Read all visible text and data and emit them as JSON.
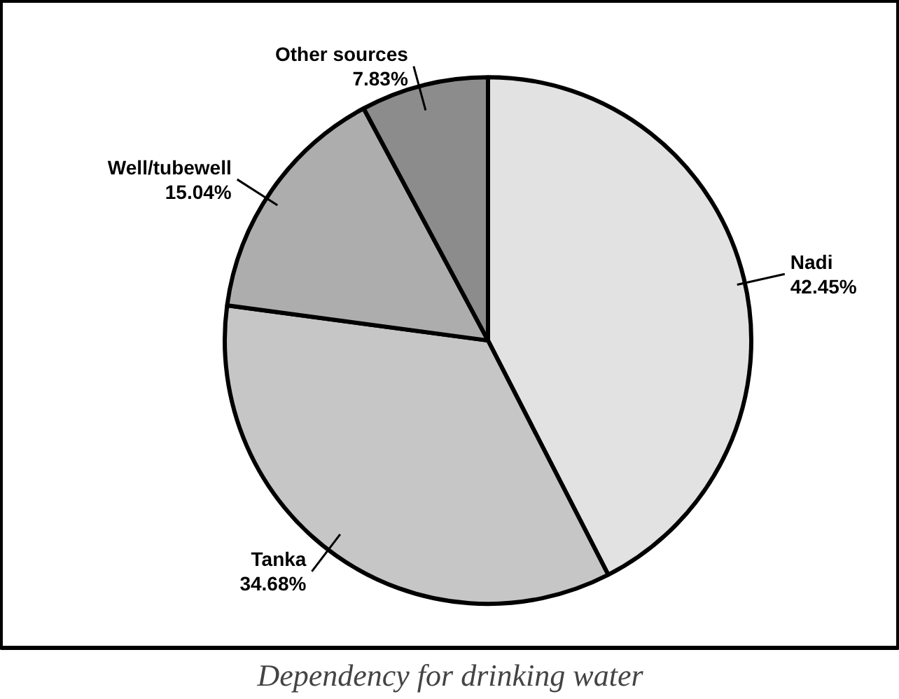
{
  "chart_data": {
    "type": "pie",
    "title": "Dependency for drinking water",
    "categories": [
      "Nadi",
      "Tanka",
      "Well/tubewell",
      "Other sources"
    ],
    "values": [
      42.45,
      34.68,
      15.04,
      7.83
    ],
    "value_labels": [
      "42.45%",
      "34.68%",
      "15.04%",
      "7.83%"
    ],
    "colors": [
      "#e2e2e2",
      "#c6c6c6",
      "#adadad",
      "#8c8c8c"
    ]
  }
}
